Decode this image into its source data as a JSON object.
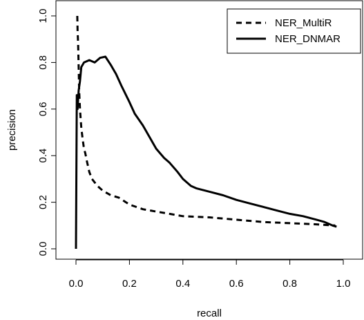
{
  "chart_data": {
    "type": "line",
    "xlabel": "recall",
    "ylabel": "precision",
    "xlim": [
      0.0,
      1.0
    ],
    "ylim": [
      0.0,
      1.0
    ],
    "xticks": [
      "0.0",
      "0.2",
      "0.4",
      "0.6",
      "0.8",
      "1.0"
    ],
    "yticks": [
      "0.0",
      "0.2",
      "0.4",
      "0.6",
      "0.8",
      "1.0"
    ],
    "grid": false,
    "legend_position": "top-right",
    "series": [
      {
        "name": "NER_MultiR",
        "style": "dashed",
        "color": "#000000",
        "points": [
          [
            0.005,
            1.0
          ],
          [
            0.006,
            0.94
          ],
          [
            0.008,
            0.88
          ],
          [
            0.01,
            0.78
          ],
          [
            0.012,
            0.68
          ],
          [
            0.015,
            0.6
          ],
          [
            0.02,
            0.52
          ],
          [
            0.025,
            0.47
          ],
          [
            0.03,
            0.43
          ],
          [
            0.035,
            0.41
          ],
          [
            0.04,
            0.38
          ],
          [
            0.05,
            0.33
          ],
          [
            0.06,
            0.3
          ],
          [
            0.08,
            0.27
          ],
          [
            0.1,
            0.25
          ],
          [
            0.13,
            0.23
          ],
          [
            0.16,
            0.22
          ],
          [
            0.2,
            0.19
          ],
          [
            0.25,
            0.17
          ],
          [
            0.3,
            0.16
          ],
          [
            0.35,
            0.15
          ],
          [
            0.4,
            0.14
          ],
          [
            0.5,
            0.135
          ],
          [
            0.6,
            0.125
          ],
          [
            0.7,
            0.115
          ],
          [
            0.8,
            0.11
          ],
          [
            0.9,
            0.105
          ],
          [
            0.97,
            0.1
          ]
        ]
      },
      {
        "name": "NER_DNMAR",
        "style": "solid",
        "color": "#000000",
        "points": [
          [
            0.0,
            0.0
          ],
          [
            0.003,
            0.66
          ],
          [
            0.006,
            0.6
          ],
          [
            0.01,
            0.68
          ],
          [
            0.015,
            0.72
          ],
          [
            0.02,
            0.78
          ],
          [
            0.03,
            0.8
          ],
          [
            0.05,
            0.81
          ],
          [
            0.07,
            0.8
          ],
          [
            0.09,
            0.82
          ],
          [
            0.11,
            0.825
          ],
          [
            0.13,
            0.79
          ],
          [
            0.15,
            0.75
          ],
          [
            0.17,
            0.7
          ],
          [
            0.2,
            0.63
          ],
          [
            0.22,
            0.58
          ],
          [
            0.25,
            0.53
          ],
          [
            0.28,
            0.47
          ],
          [
            0.3,
            0.43
          ],
          [
            0.33,
            0.39
          ],
          [
            0.35,
            0.37
          ],
          [
            0.38,
            0.33
          ],
          [
            0.4,
            0.3
          ],
          [
            0.43,
            0.27
          ],
          [
            0.45,
            0.26
          ],
          [
            0.5,
            0.245
          ],
          [
            0.55,
            0.23
          ],
          [
            0.6,
            0.21
          ],
          [
            0.65,
            0.195
          ],
          [
            0.7,
            0.18
          ],
          [
            0.75,
            0.165
          ],
          [
            0.8,
            0.15
          ],
          [
            0.85,
            0.14
          ],
          [
            0.9,
            0.125
          ],
          [
            0.93,
            0.115
          ],
          [
            0.96,
            0.1
          ],
          [
            0.975,
            0.095
          ]
        ]
      }
    ]
  }
}
